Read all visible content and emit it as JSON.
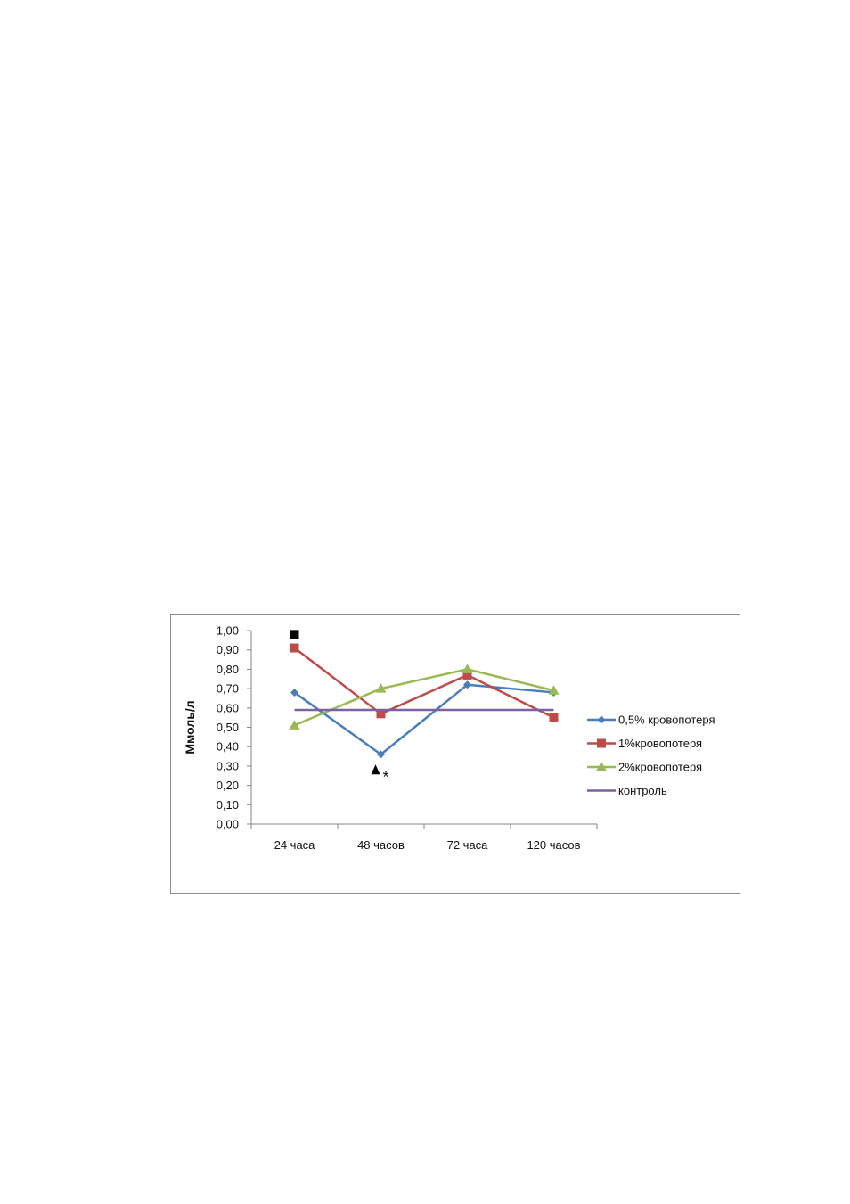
{
  "chart_data": {
    "type": "line",
    "ylabel": "Ммоль/л",
    "xlabel": "",
    "ylim": [
      0,
      1
    ],
    "yticks": [
      "0,00",
      "0,10",
      "0,20",
      "0,30",
      "0,40",
      "0,50",
      "0,60",
      "0,70",
      "0,80",
      "0,90",
      "1,00"
    ],
    "categories": [
      "24 часа",
      "48 часов",
      "72 часа",
      "120 часов"
    ],
    "grid": false,
    "legend_position": "right",
    "series": [
      {
        "name": "0,5% кровопотеря",
        "values": [
          0.68,
          0.36,
          0.72,
          0.68
        ],
        "color": "#4a7ebb",
        "marker": "diamond"
      },
      {
        "name": "1%кровопотеря",
        "values": [
          0.91,
          0.57,
          0.77,
          0.55
        ],
        "color": "#be4b48",
        "marker": "square"
      },
      {
        "name": "2%кровопотеря",
        "values": [
          0.51,
          0.7,
          0.8,
          0.69
        ],
        "color": "#98b954",
        "marker": "triangle"
      },
      {
        "name": "контроль",
        "values": [
          0.59,
          0.59,
          0.59,
          0.59
        ],
        "color": "#7d60a0",
        "marker": "none"
      }
    ],
    "annotations": [
      {
        "symbol": "square-mark",
        "category": "24 часа",
        "y": 0.98
      },
      {
        "symbol": "triangle-mark",
        "category": "48 часов",
        "y": 0.28
      },
      {
        "text": "*",
        "category": "48 часов",
        "y": 0.27
      }
    ]
  }
}
